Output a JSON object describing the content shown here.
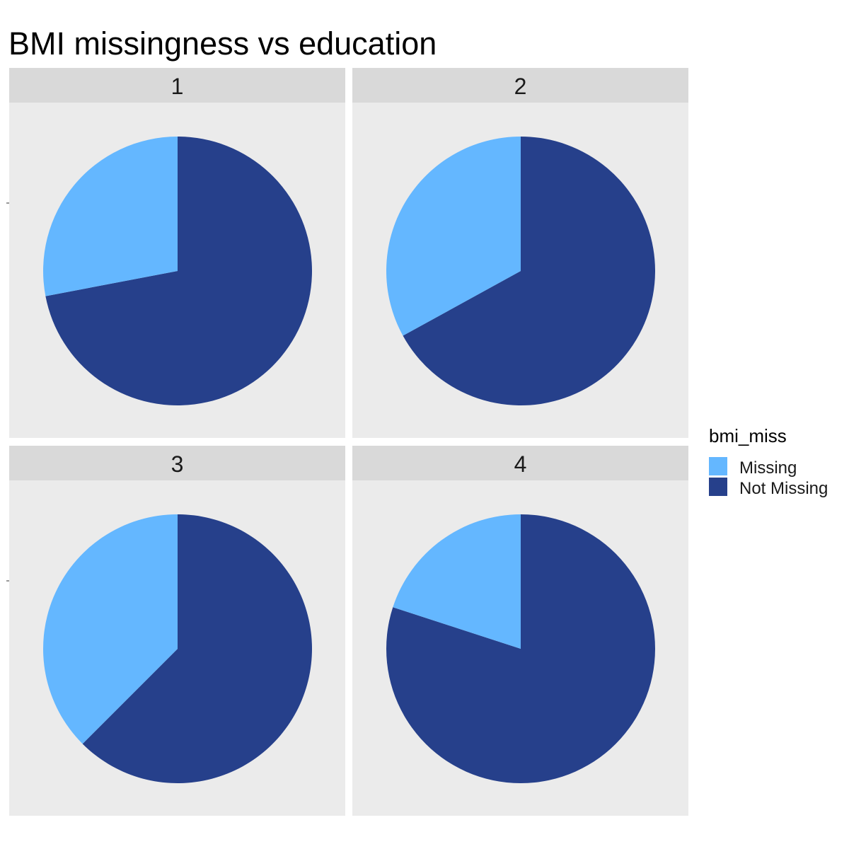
{
  "chart_data": {
    "type": "pie",
    "title": "BMI missingness vs education",
    "legend": {
      "title": "bmi_miss",
      "placement": "right",
      "entries": [
        "Missing",
        "Not Missing"
      ]
    },
    "colors": {
      "Missing": "#64b7ff",
      "Not Missing": "#26408b",
      "panel_background": "#ebebeb",
      "strip_background": "#d9d9d9"
    },
    "categories": [
      "Missing",
      "Not Missing"
    ],
    "facets": [
      {
        "label": "1",
        "values": [
          0.28,
          0.72
        ]
      },
      {
        "label": "2",
        "values": [
          0.33,
          0.67
        ]
      },
      {
        "label": "3",
        "values": [
          0.375,
          0.625
        ]
      },
      {
        "label": "4",
        "values": [
          0.2,
          0.8
        ]
      }
    ]
  }
}
